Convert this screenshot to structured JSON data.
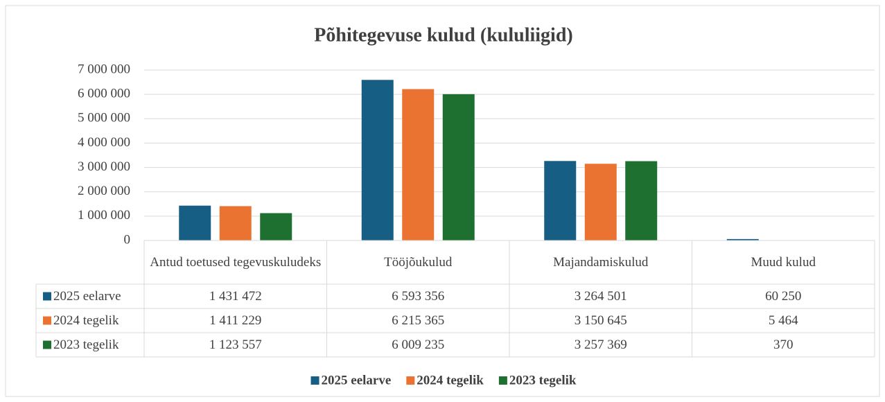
{
  "chart_data": {
    "type": "bar",
    "title": "Põhitegevuse kulud (kululiigid)",
    "categories": [
      "Antud toetused tegevuskuludeks",
      "Tööjõukulud",
      "Majandamiskulud",
      "Muud kulud"
    ],
    "series": [
      {
        "name": "2025 eelarve",
        "color": "#165e83",
        "values": [
          1431472,
          6593356,
          3264501,
          60250
        ],
        "value_labels": [
          "1 431 472",
          "6 593 356",
          "3 264 501",
          "60 250"
        ]
      },
      {
        "name": "2024 tegelik",
        "color": "#eb7331",
        "values": [
          1411229,
          6215365,
          3150645,
          5464
        ],
        "value_labels": [
          "1 411 229",
          "6 215 365",
          "3 150 645",
          "5 464"
        ]
      },
      {
        "name": "2023 tegelik",
        "color": "#1e7030",
        "values": [
          1123557,
          6009235,
          3257369,
          370
        ],
        "value_labels": [
          "1 123 557",
          "6 009 235",
          "3 257 369",
          "370"
        ]
      }
    ],
    "ylim": [
      0,
      7000000
    ],
    "yticks": [
      0,
      {
        "value": 1000000,
        "label": "1 000 000"
      },
      {
        "value": 2000000,
        "label": "2 000 000"
      },
      {
        "value": 3000000,
        "label": "3 000 000"
      },
      {
        "value": 4000000,
        "label": "4 000 000"
      },
      {
        "value": 5000000,
        "label": "5 000 000"
      },
      {
        "value": 6000000,
        "label": "6 000 000"
      },
      {
        "value": 7000000,
        "label": "7 000 000"
      }
    ],
    "grid": true,
    "legend": "bottom"
  }
}
